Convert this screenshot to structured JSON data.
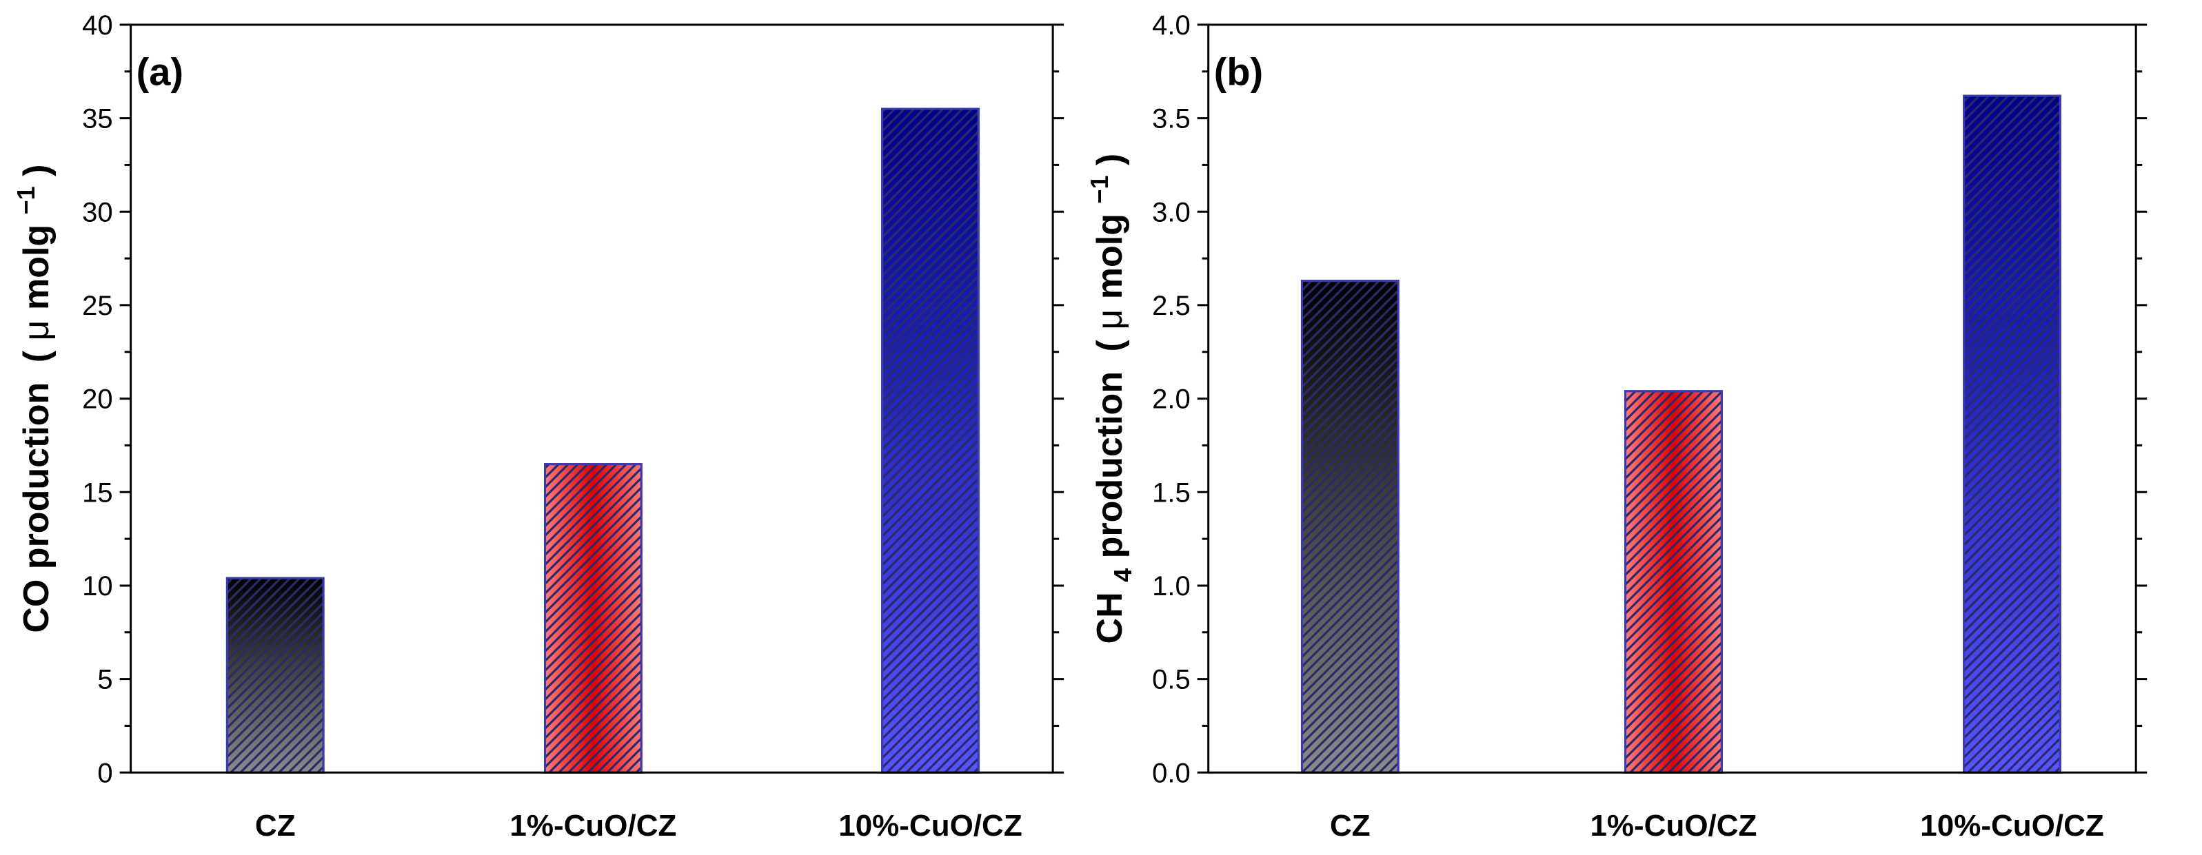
{
  "chart_data": [
    {
      "type": "bar",
      "panel_label": "(a)",
      "categories": [
        "CZ",
        "1%-CuO/CZ",
        "10%-CuO/CZ"
      ],
      "values": [
        10.4,
        16.5,
        35.5
      ],
      "ylabel_main": "CO production",
      "ylabel_unit_open": "(",
      "ylabel_unit_mu": "μ",
      "ylabel_unit_rest": "molg",
      "ylabel_unit_exp": "−1",
      "ylabel_unit_close": ")",
      "ylim": [
        0,
        40
      ],
      "ytick_values": [
        0,
        5,
        10,
        15,
        20,
        25,
        30,
        35,
        40
      ],
      "ytick_labels": [
        "0",
        "5",
        "10",
        "15",
        "20",
        "25",
        "30",
        "35",
        "40"
      ],
      "xlabel": ""
    },
    {
      "type": "bar",
      "panel_label": "(b)",
      "categories": [
        "CZ",
        "1%-CuO/CZ",
        "10%-CuO/CZ"
      ],
      "values": [
        2.63,
        2.04,
        3.62
      ],
      "ylabel_prefix": "CH",
      "ylabel_sub": "4",
      "ylabel_main": " production",
      "ylabel_unit_open": "(",
      "ylabel_unit_mu": "μ",
      "ylabel_unit_rest": "molg",
      "ylabel_unit_exp": "−1",
      "ylabel_unit_close": ")",
      "ylim": [
        0,
        4
      ],
      "ytick_values": [
        0,
        0.5,
        1.0,
        1.5,
        2.0,
        2.5,
        3.0,
        3.5,
        4.0
      ],
      "ytick_labels": [
        "0.0",
        "0.5",
        "1.0",
        "1.5",
        "2.0",
        "2.5",
        "3.0",
        "3.5",
        "4.0"
      ],
      "xlabel": ""
    }
  ],
  "colors": {
    "bar_dark_top": "#000000",
    "bar_dark_bottom": "#8a8a8a",
    "bar_red_center": "#e00000",
    "bar_red_edge": "#ff7a7a",
    "bar_blue_top": "#000088",
    "bar_blue_bottom": "#5555ff",
    "bar_outline": "#3b3bb0",
    "hatch": "#2a2a6a",
    "axis": "#000000"
  }
}
